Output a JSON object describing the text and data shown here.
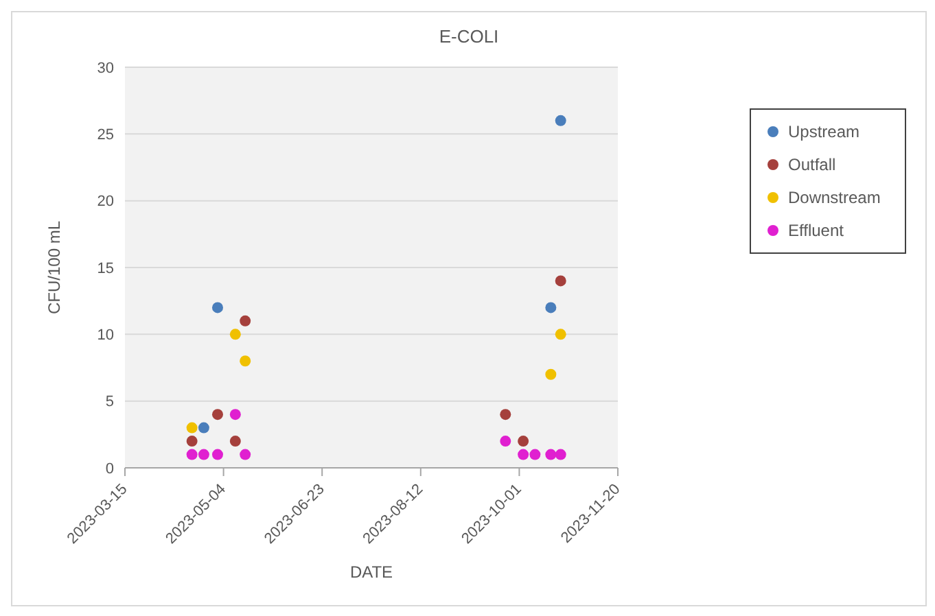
{
  "chart_data": {
    "type": "scatter",
    "title": "E-COLI",
    "xlabel": "DATE",
    "ylabel": "CFU/100 mL",
    "xlim": [
      "2023-03-15",
      "2023-11-20"
    ],
    "xticks": [
      "2023-03-15",
      "2023-05-04",
      "2023-06-23",
      "2023-08-12",
      "2023-10-01",
      "2023-11-20"
    ],
    "ylim": [
      0,
      30
    ],
    "yticks": [
      0,
      5,
      10,
      15,
      20,
      25,
      30
    ],
    "grid": "y",
    "legend": "top right",
    "marker": "circle",
    "series": [
      {
        "name": "Upstream",
        "color": "#4a7ebb",
        "x": [
          "2023-04-24",
          "2023-05-01",
          "2023-10-17",
          "2023-10-22"
        ],
        "values": [
          3,
          12,
          12,
          26
        ]
      },
      {
        "name": "Outfall",
        "color": "#a5403c",
        "x": [
          "2023-04-18",
          "2023-05-01",
          "2023-05-10",
          "2023-05-15",
          "2023-09-24",
          "2023-10-03",
          "2023-10-22"
        ],
        "values": [
          2,
          4,
          2,
          11,
          4,
          2,
          14
        ]
      },
      {
        "name": "Downstream",
        "color": "#f0c000",
        "x": [
          "2023-04-18",
          "2023-05-10",
          "2023-05-15",
          "2023-10-17",
          "2023-10-22"
        ],
        "values": [
          3,
          10,
          8,
          7,
          10
        ]
      },
      {
        "name": "Effluent",
        "color": "#e020d0",
        "x": [
          "2023-04-18",
          "2023-04-24",
          "2023-05-01",
          "2023-05-10",
          "2023-05-15",
          "2023-09-24",
          "2023-10-03",
          "2023-10-09",
          "2023-10-17",
          "2023-10-22"
        ],
        "values": [
          1,
          1,
          1,
          4,
          1,
          2,
          1,
          1,
          1,
          1
        ]
      }
    ]
  }
}
